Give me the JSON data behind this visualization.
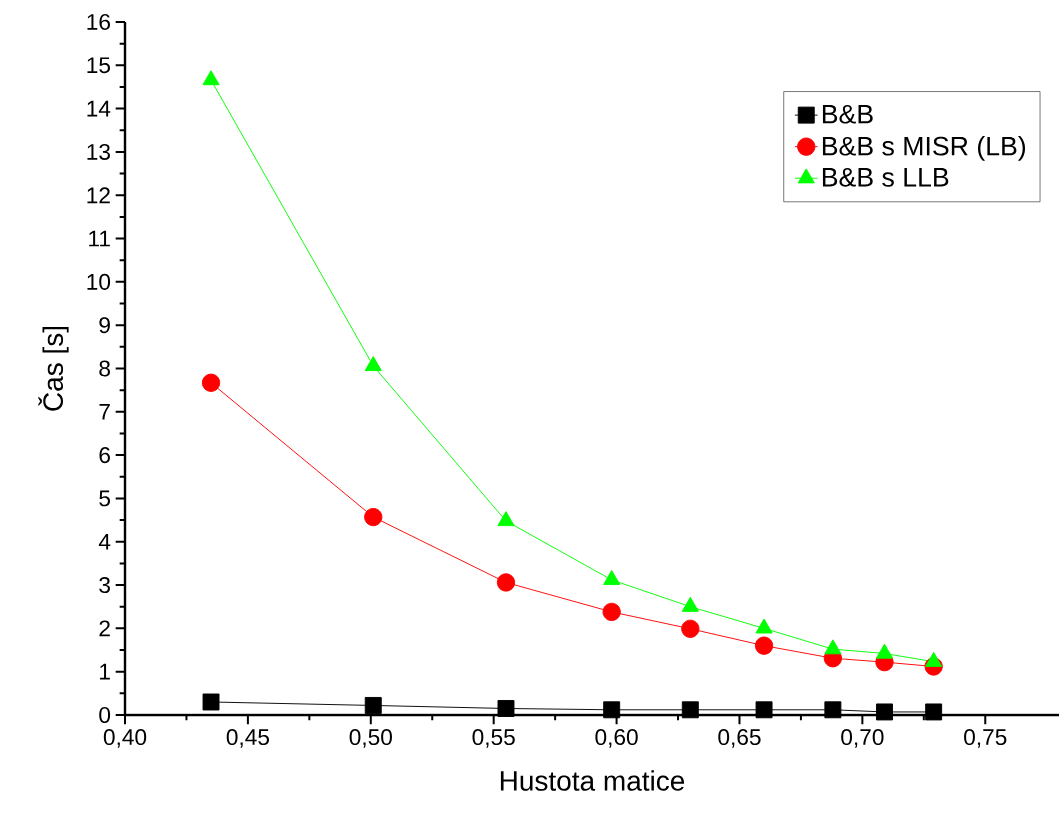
{
  "chart_data": {
    "type": "line",
    "xlabel": "Hustota matice",
    "ylabel": "Čas [s]",
    "x": [
      0.435,
      0.501,
      0.555,
      0.598,
      0.63,
      0.66,
      0.688,
      0.709,
      0.729
    ],
    "series": [
      {
        "name": "B&B",
        "color": "#000000",
        "marker": "square",
        "values": [
          0.3,
          0.22,
          0.15,
          0.12,
          0.12,
          0.12,
          0.12,
          0.07,
          0.07
        ]
      },
      {
        "name": "B&B s MISR (LB)",
        "color": "#ff0000",
        "marker": "circle",
        "values": [
          7.67,
          4.57,
          3.06,
          2.38,
          1.99,
          1.6,
          1.31,
          1.22,
          1.12
        ]
      },
      {
        "name": "B&B s LLB",
        "color": "#00ff00",
        "marker": "triangle",
        "values": [
          14.66,
          8.06,
          4.48,
          3.12,
          2.5,
          2.0,
          1.52,
          1.42,
          1.23
        ]
      }
    ],
    "xlim": [
      0.4,
      0.78
    ],
    "ylim": [
      0,
      16
    ],
    "xticks": [
      {
        "value": 0.4,
        "label": "0,40"
      },
      {
        "value": 0.45,
        "label": "0,45"
      },
      {
        "value": 0.5,
        "label": "0,50"
      },
      {
        "value": 0.55,
        "label": "0,55"
      },
      {
        "value": 0.6,
        "label": "0,60"
      },
      {
        "value": 0.65,
        "label": "0,65"
      },
      {
        "value": 0.7,
        "label": "0,70"
      },
      {
        "value": 0.75,
        "label": "0,75"
      }
    ],
    "yticks": [
      0,
      1,
      2,
      3,
      4,
      5,
      6,
      7,
      8,
      9,
      10,
      11,
      12,
      13,
      14,
      15,
      16
    ],
    "grid": false,
    "legend": "top right",
    "line_style": "solid"
  }
}
